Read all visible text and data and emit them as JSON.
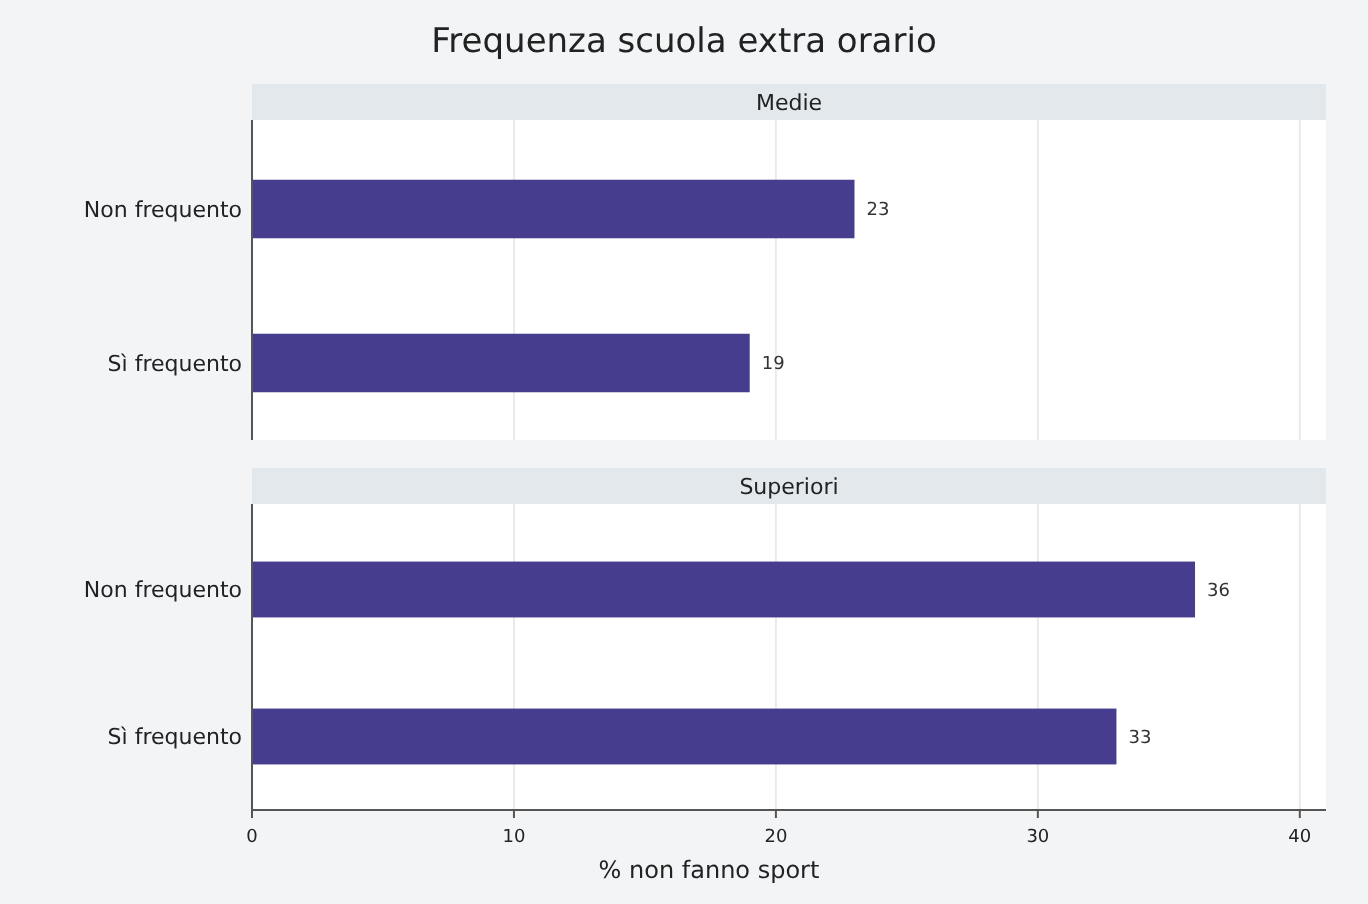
{
  "chart_data": [
    {
      "type": "bar",
      "orientation": "horizontal",
      "title": "Frequenza scuola extra orario",
      "subtitle": "Medie",
      "categories": [
        "Non frequento",
        "Sì frequento"
      ],
      "values": [
        23,
        19
      ],
      "color": "#463d8f",
      "data_labels": true,
      "xlim": [
        0,
        41
      ],
      "xticks": [
        0,
        10,
        20,
        30,
        40
      ],
      "grid": "x",
      "tick_labels": "y"
    },
    {
      "type": "bar",
      "orientation": "horizontal",
      "subtitle": "Superiori",
      "categories": [
        "Non frequento",
        "Sì frequento"
      ],
      "values": [
        36,
        33
      ],
      "color": "#463d8f",
      "data_labels": true,
      "xlim": [
        0,
        41
      ],
      "xticks": [
        0,
        10,
        20,
        30,
        40
      ],
      "grid": "x",
      "xlabel": "% non fanno sport"
    }
  ]
}
